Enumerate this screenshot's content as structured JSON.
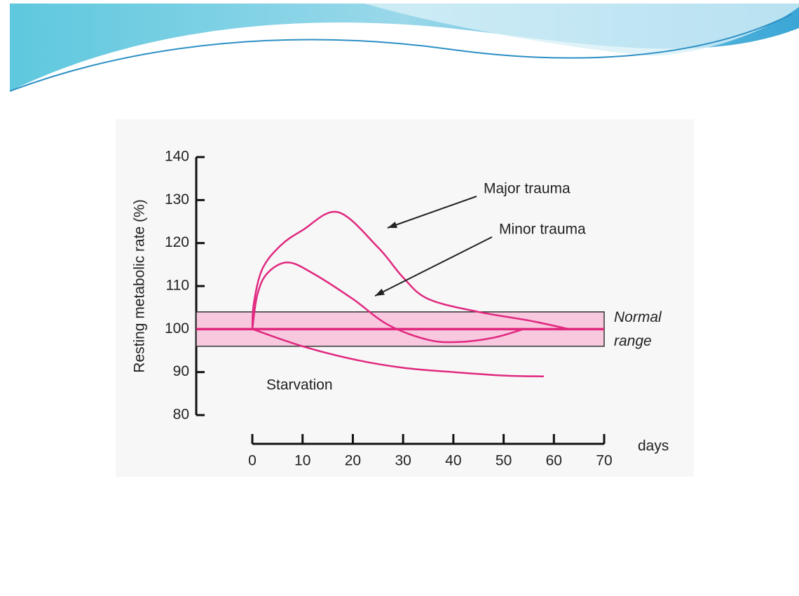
{
  "chart_data": {
    "type": "line",
    "y_label": "Resting metabolic rate (%)",
    "x_label": "days",
    "ylim": [
      80,
      140
    ],
    "yticks": [
      80,
      90,
      100,
      110,
      120,
      130,
      140
    ],
    "xlim": [
      0,
      70
    ],
    "xticks": [
      0,
      10,
      20,
      30,
      40,
      50,
      60,
      70
    ],
    "grid": false,
    "reference_line": 100,
    "normal_range": {
      "low": 96,
      "high": 104,
      "labels": [
        "Normal",
        "range"
      ]
    },
    "color": "#e0287f",
    "series": [
      {
        "name": "Major trauma",
        "color": "#e0287f",
        "x": [
          0,
          0.3,
          2,
          5.6,
          10,
          17,
          25,
          30,
          35,
          45,
          55,
          63
        ],
        "values": [
          100,
          106,
          114,
          119.4,
          123,
          127.2,
          119,
          112,
          107,
          104,
          102,
          100
        ]
      },
      {
        "name": "Minor trauma",
        "color": "#e0287f",
        "x": [
          0,
          1,
          3,
          7,
          12,
          20,
          27,
          35,
          41,
          48,
          54
        ],
        "values": [
          100,
          108,
          113,
          115.5,
          113,
          107,
          101,
          97.5,
          97,
          98,
          100
        ]
      },
      {
        "name": "Starvation",
        "color": "#e0287f",
        "x": [
          0,
          10,
          20,
          30,
          40,
          50,
          58
        ],
        "values": [
          100,
          96,
          93,
          91,
          90,
          89.2,
          89
        ]
      }
    ]
  }
}
